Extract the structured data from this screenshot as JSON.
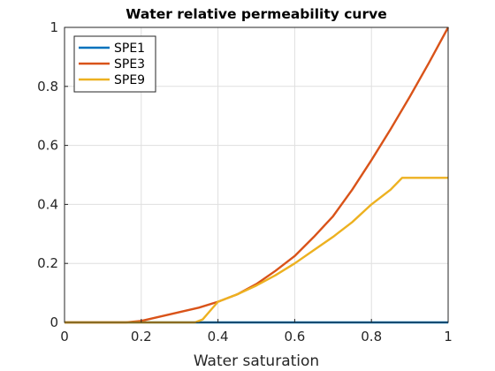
{
  "chart_data": {
    "type": "line",
    "title": "Water relative permeability curve",
    "xlabel": "Water saturation",
    "ylabel": "",
    "xlim": [
      0,
      1
    ],
    "ylim": [
      0,
      1
    ],
    "xticks": [
      0,
      0.2,
      0.4,
      0.6,
      0.8,
      1
    ],
    "xtick_labels": [
      "0",
      "0.2",
      "0.4",
      "0.6",
      "0.8",
      "1"
    ],
    "yticks": [
      0,
      0.2,
      0.4,
      0.6,
      0.8,
      1
    ],
    "ytick_labels": [
      "0",
      "0.2",
      "0.4",
      "0.6",
      "0.8",
      "1"
    ],
    "grid": true,
    "legend_position": "top-left",
    "series": [
      {
        "name": "SPE1",
        "color": "#0072bd",
        "x": [
          0,
          1
        ],
        "y": [
          0,
          0
        ]
      },
      {
        "name": "SPE3",
        "color": "#d95319",
        "x": [
          0,
          0.16,
          0.2,
          0.25,
          0.3,
          0.35,
          0.4,
          0.45,
          0.5,
          0.55,
          0.6,
          0.65,
          0.7,
          0.75,
          0.8,
          0.85,
          0.9,
          0.95,
          1.0
        ],
        "y": [
          0,
          0,
          0.005,
          0.02,
          0.035,
          0.05,
          0.07,
          0.095,
          0.13,
          0.175,
          0.225,
          0.29,
          0.36,
          0.45,
          0.55,
          0.655,
          0.765,
          0.88,
          1.0
        ]
      },
      {
        "name": "SPE9",
        "color": "#edb120",
        "x": [
          0,
          0.34,
          0.36,
          0.38,
          0.4,
          0.45,
          0.5,
          0.55,
          0.6,
          0.65,
          0.7,
          0.75,
          0.8,
          0.85,
          0.88,
          0.9,
          0.95,
          1.0
        ],
        "y": [
          0,
          0,
          0.01,
          0.04,
          0.07,
          0.095,
          0.125,
          0.16,
          0.2,
          0.245,
          0.29,
          0.34,
          0.4,
          0.45,
          0.49,
          0.49,
          0.49,
          0.49
        ]
      }
    ]
  }
}
